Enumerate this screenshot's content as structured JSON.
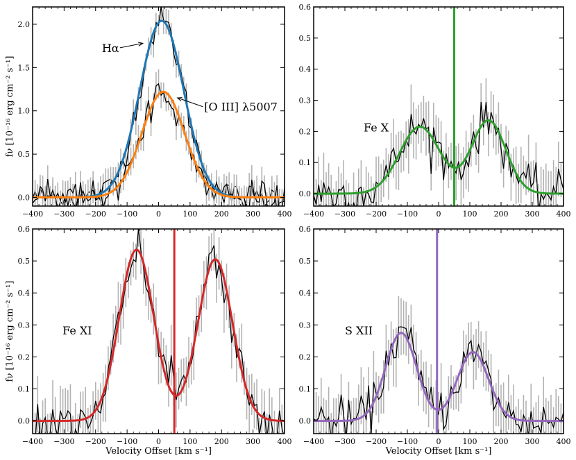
{
  "figure": {
    "xlabel": "Velocity Offset [km s⁻¹]",
    "ylabel": "fν [10⁻¹⁶ erg cm⁻² s⁻¹]"
  },
  "colors": {
    "halpha": "#1f77b4",
    "oiii": "#ff7f0e",
    "fex": "#2ca02c",
    "fexi": "#d62728",
    "sxii": "#9467bd",
    "data": "#000000",
    "errorbar": "#b3b3b3"
  },
  "chart_data": [
    {
      "type": "line",
      "panel": "top-left",
      "xlim": [
        -400,
        400
      ],
      "ylim": [
        -0.1,
        2.2
      ],
      "xticks": [
        -400,
        -300,
        -200,
        -100,
        0,
        100,
        200,
        300,
        400
      ],
      "yticks": [
        0.0,
        0.5,
        1.0,
        1.5,
        2.0
      ],
      "ytick_labels": [
        "0.0",
        "0.5",
        "1.0",
        "1.5",
        "2.0"
      ],
      "show_ylabel": true,
      "show_xlabel": false,
      "annotations": [
        {
          "text": "Hα",
          "x": -180,
          "y": 1.68,
          "arrow_to": [
            -50,
            1.78
          ]
        },
        {
          "text": "[O III] λ5007",
          "x": 145,
          "y": 1.0,
          "arrow_to": [
            60,
            1.15
          ]
        }
      ],
      "series": [
        {
          "name": "Hα",
          "color": "halpha",
          "model": {
            "components": [
              {
                "amp": 2.04,
                "mu": 10,
                "sigma": 70
              }
            ]
          }
        },
        {
          "name": "[O III] λ5007",
          "color": "oiii",
          "model": {
            "components": [
              {
                "amp": 1.22,
                "mu": 15,
                "sigma": 68
              }
            ]
          }
        }
      ]
    },
    {
      "type": "line",
      "panel": "top-right",
      "label": "Fe X",
      "label_pos": [
        -240,
        0.2
      ],
      "xlim": [
        -400,
        400
      ],
      "ylim": [
        -0.04,
        0.6
      ],
      "xticks": [
        -400,
        -300,
        -200,
        -100,
        0,
        100,
        200,
        300,
        400
      ],
      "yticks": [
        0.0,
        0.1,
        0.2,
        0.3,
        0.4,
        0.5,
        0.6
      ],
      "ytick_labels": [
        "0.0",
        "0.1",
        "0.2",
        "0.3",
        "0.4",
        "0.5",
        "0.6"
      ],
      "vline": 50,
      "color": "fex",
      "show_ylabel": false,
      "show_xlabel": false,
      "model": {
        "components": [
          {
            "amp": 0.215,
            "mu": -60,
            "sigma": 65
          },
          {
            "amp": 0.235,
            "mu": 160,
            "sigma": 55
          }
        ]
      }
    },
    {
      "type": "line",
      "panel": "bottom-left",
      "label": "Fe XI",
      "label_pos": [
        -305,
        0.27
      ],
      "xlim": [
        -400,
        400
      ],
      "ylim": [
        -0.04,
        0.6
      ],
      "xticks": [
        -400,
        -300,
        -200,
        -100,
        0,
        100,
        200,
        300,
        400
      ],
      "yticks": [
        0.0,
        0.1,
        0.2,
        0.3,
        0.4,
        0.5,
        0.6
      ],
      "ytick_labels": [
        "0.0",
        "0.1",
        "0.2",
        "0.3",
        "0.4",
        "0.5",
        "0.6"
      ],
      "vline": 50,
      "color": "fexi",
      "show_ylabel": true,
      "show_xlabel": true,
      "model": {
        "components": [
          {
            "amp": 0.535,
            "mu": -70,
            "sigma": 55
          },
          {
            "amp": 0.505,
            "mu": 180,
            "sigma": 55
          }
        ]
      }
    },
    {
      "type": "line",
      "panel": "bottom-right",
      "label": "S XII",
      "label_pos": [
        -300,
        0.27
      ],
      "xlim": [
        -400,
        400
      ],
      "ylim": [
        -0.04,
        0.6
      ],
      "xticks": [
        -400,
        -300,
        -200,
        -100,
        0,
        100,
        200,
        300,
        400
      ],
      "yticks": [
        0.0,
        0.1,
        0.2,
        0.3,
        0.4,
        0.5,
        0.6
      ],
      "ytick_labels": [
        "0.0",
        "0.1",
        "0.2",
        "0.3",
        "0.4",
        "0.5",
        "0.6"
      ],
      "vline": -5,
      "color": "sxii",
      "show_ylabel": false,
      "show_xlabel": true,
      "model": {
        "components": [
          {
            "amp": 0.275,
            "mu": -120,
            "sigma": 50
          },
          {
            "amp": 0.215,
            "mu": 110,
            "sigma": 50
          }
        ]
      }
    }
  ]
}
